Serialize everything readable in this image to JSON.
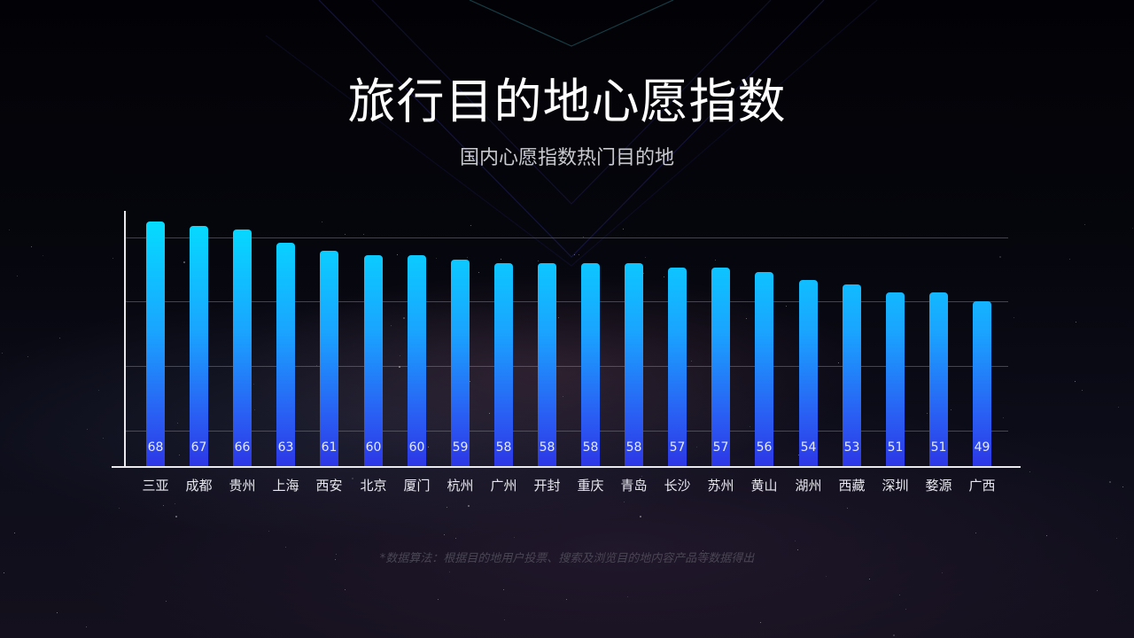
{
  "header": {
    "title": "旅行目的地心愿指数",
    "subtitle": "国内心愿指数热门目的地"
  },
  "footnote": "*数据算法：根据目的地用户投票、搜索及浏览目的地内容产品等数据得出",
  "colors": {
    "bar_top": "#05dcff",
    "bar_bottom": "#2d37e6",
    "background": "#030308",
    "axis": "#e9e9ee"
  },
  "chart_data": {
    "type": "bar",
    "title": "旅行目的地心愿指数",
    "subtitle": "国内心愿指数热门目的地",
    "xlabel": "",
    "ylabel": "",
    "categories": [
      "三亚",
      "成都",
      "贵州",
      "上海",
      "西安",
      "北京",
      "厦门",
      "杭州",
      "广州",
      "开封",
      "重庆",
      "青岛",
      "长沙",
      "苏州",
      "黄山",
      "湖州",
      "西藏",
      "深圳",
      "婺源",
      "广西"
    ],
    "values": [
      68,
      67,
      66,
      63,
      61,
      60,
      60,
      59,
      58,
      58,
      58,
      58,
      57,
      57,
      56,
      54,
      53,
      51,
      51,
      49
    ],
    "data_labels": "inside-bottom",
    "grid": true,
    "y_tick_labels_visible": false,
    "legend": null
  }
}
